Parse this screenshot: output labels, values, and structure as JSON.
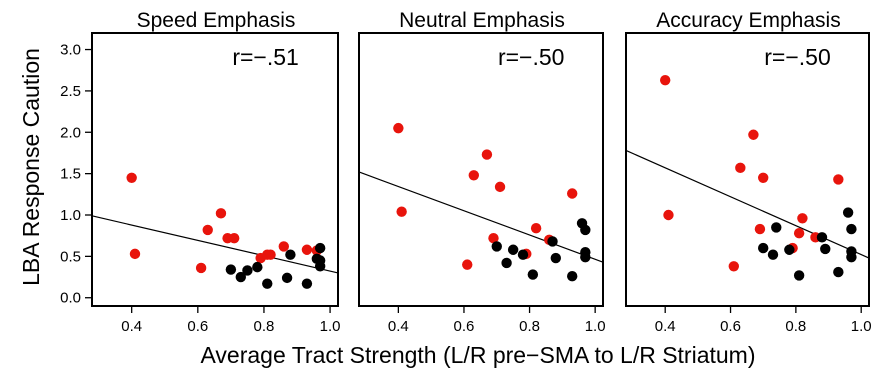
{
  "figure": {
    "ylabel": "LBA Response Caution",
    "xlabel": "Average Tract Strength (L/R pre−SMA to L/R Striatum)"
  },
  "colors": {
    "group_a": "#e8140c",
    "group_b": "#000000",
    "fit_line": "#000000"
  },
  "chart_data": [
    {
      "type": "scatter",
      "title": "Speed Emphasis",
      "annotation": "r=−.51",
      "xlim": [
        0.28,
        1.03
      ],
      "ylim": [
        -0.1,
        3.2
      ],
      "xticks": [
        "0.4",
        "0.6",
        "0.8",
        "1.0"
      ],
      "yticks": [
        "0.0",
        "0.5",
        "1.0",
        "1.5",
        "2.0",
        "2.5",
        "3.0"
      ],
      "fit_line": {
        "x": [
          0.28,
          1.03
        ],
        "y": [
          0.99,
          0.3
        ]
      },
      "series": [
        {
          "color": "group_a",
          "x": [
            0.4,
            0.41,
            0.61,
            0.63,
            0.67,
            0.69,
            0.71,
            0.79,
            0.81,
            0.82,
            0.86,
            0.93,
            0.96
          ],
          "y": [
            1.45,
            0.53,
            0.36,
            0.82,
            1.02,
            0.72,
            0.72,
            0.48,
            0.52,
            0.52,
            0.62,
            0.58,
            0.57
          ]
        },
        {
          "color": "group_b",
          "x": [
            0.7,
            0.73,
            0.75,
            0.78,
            0.81,
            0.87,
            0.88,
            0.93,
            0.96,
            0.97,
            0.97,
            0.97
          ],
          "y": [
            0.34,
            0.25,
            0.33,
            0.37,
            0.17,
            0.24,
            0.52,
            0.17,
            0.47,
            0.6,
            0.38,
            0.45
          ]
        }
      ]
    },
    {
      "type": "scatter",
      "title": "Neutral Emphasis",
      "annotation": "r=−.50",
      "xlim": [
        0.28,
        1.03
      ],
      "ylim": [
        -0.1,
        3.2
      ],
      "xticks": [
        "0.4",
        "0.6",
        "0.8",
        "1.0"
      ],
      "yticks": [],
      "fit_line": {
        "x": [
          0.28,
          1.03
        ],
        "y": [
          1.52,
          0.43
        ]
      },
      "series": [
        {
          "color": "group_a",
          "x": [
            0.4,
            0.41,
            0.61,
            0.63,
            0.67,
            0.69,
            0.71,
            0.79,
            0.82,
            0.86,
            0.93
          ],
          "y": [
            2.05,
            1.04,
            0.4,
            1.48,
            1.73,
            0.72,
            1.34,
            0.53,
            0.84,
            0.7,
            1.26
          ]
        },
        {
          "color": "group_b",
          "x": [
            0.7,
            0.73,
            0.75,
            0.78,
            0.81,
            0.87,
            0.88,
            0.93,
            0.96,
            0.97,
            0.97,
            0.97
          ],
          "y": [
            0.62,
            0.42,
            0.58,
            0.52,
            0.28,
            0.68,
            0.48,
            0.26,
            0.9,
            0.82,
            0.55,
            0.49
          ]
        }
      ]
    },
    {
      "type": "scatter",
      "title": "Accuracy Emphasis",
      "annotation": "r=−.50",
      "xlim": [
        0.28,
        1.03
      ],
      "ylim": [
        -0.1,
        3.2
      ],
      "xticks": [
        "0.4",
        "0.6",
        "0.8",
        "1.0"
      ],
      "yticks": [],
      "fit_line": {
        "x": [
          0.28,
          1.03
        ],
        "y": [
          1.78,
          0.48
        ]
      },
      "series": [
        {
          "color": "group_a",
          "x": [
            0.4,
            0.41,
            0.61,
            0.63,
            0.67,
            0.69,
            0.7,
            0.79,
            0.81,
            0.82,
            0.86,
            0.93
          ],
          "y": [
            2.63,
            1.0,
            0.38,
            1.57,
            1.97,
            0.83,
            1.45,
            0.6,
            0.78,
            0.96,
            0.73,
            1.43
          ]
        },
        {
          "color": "group_b",
          "x": [
            0.7,
            0.73,
            0.74,
            0.78,
            0.81,
            0.88,
            0.89,
            0.93,
            0.96,
            0.97,
            0.97,
            0.97
          ],
          "y": [
            0.6,
            0.52,
            0.85,
            0.58,
            0.27,
            0.73,
            0.59,
            0.31,
            1.03,
            0.83,
            0.56,
            0.49
          ]
        }
      ]
    }
  ]
}
